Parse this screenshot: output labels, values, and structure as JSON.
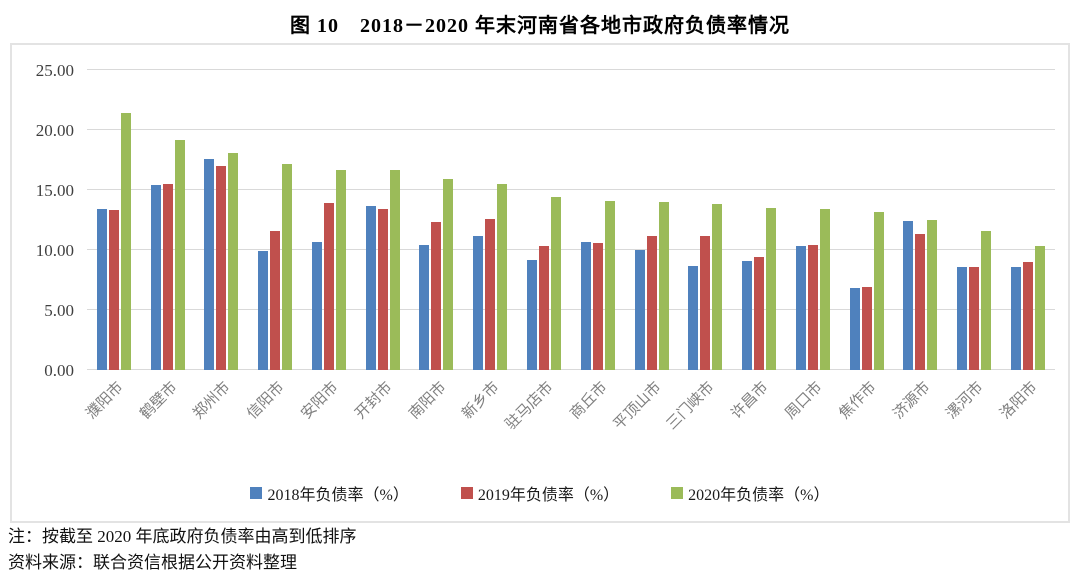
{
  "title": "图 10　2018－2020 年末河南省各地市政府负债率情况",
  "chart_data": {
    "type": "bar",
    "title": "图 10　2018－2020 年末河南省各地市政府负债率情况",
    "categories": [
      "濮阳市",
      "鹤壁市",
      "郑州市",
      "信阳市",
      "安阳市",
      "开封市",
      "南阳市",
      "新乡市",
      "驻马店市",
      "商丘市",
      "平顶山市",
      "三门峡市",
      "许昌市",
      "周口市",
      "焦作市",
      "济源市",
      "漯河市",
      "洛阳市"
    ],
    "series": [
      {
        "name": "2018年负债率（%）",
        "color": "#4F81BD",
        "values": [
          13.4,
          15.4,
          17.6,
          9.9,
          10.7,
          13.7,
          10.4,
          11.2,
          9.2,
          10.7,
          10.0,
          8.7,
          9.1,
          10.3,
          6.8,
          12.4,
          8.6,
          8.6
        ]
      },
      {
        "name": "2019年负债率（%）",
        "color": "#C0504D",
        "values": [
          13.3,
          15.5,
          17.0,
          11.6,
          13.9,
          13.4,
          12.3,
          12.6,
          10.3,
          10.6,
          11.2,
          11.2,
          9.4,
          10.4,
          6.9,
          11.3,
          8.6,
          9.0
        ]
      },
      {
        "name": "2020年负债率（%）",
        "color": "#9BBB59",
        "values": [
          21.4,
          19.2,
          18.1,
          17.2,
          16.7,
          16.7,
          15.9,
          15.5,
          14.4,
          14.1,
          14.0,
          13.8,
          13.5,
          13.4,
          13.2,
          12.5,
          11.6,
          10.3
        ]
      }
    ],
    "ylim": [
      0,
      25
    ],
    "ytick_step": 5,
    "ytick_labels": [
      "0.00",
      "5.00",
      "10.00",
      "15.00",
      "20.00",
      "25.00"
    ],
    "grid": true,
    "legend_position": "bottom-inside",
    "gridline_color": "#d9d9d9"
  },
  "notes": {
    "sort_note": "注：按截至 2020 年底政府负债率由高到低排序",
    "source": "资料来源：联合资信根据公开资料整理"
  }
}
